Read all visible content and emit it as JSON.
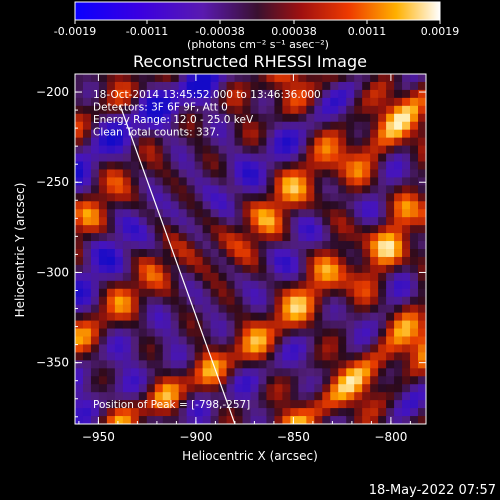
{
  "colorbar": {
    "tick_labels": [
      "-0.0019",
      "-0.0011",
      "-0.00038",
      "0.00038",
      "0.0011",
      "0.0019"
    ],
    "units_label": "(photons cm⁻² s⁻¹ asec⁻²)",
    "range": [
      -0.0019,
      0.0019
    ]
  },
  "chart_data": {
    "type": "heatmap",
    "title": "Reconstructed RHESSI Image",
    "xlabel": "Heliocentric X (arcsec)",
    "ylabel": "Heliocentric Y (arcsec)",
    "xlim": [
      -962,
      -782
    ],
    "ylim": [
      -384,
      -190
    ],
    "x_ticks": [
      -950,
      -900,
      -850,
      -800
    ],
    "y_ticks": [
      -200,
      -250,
      -300,
      -350
    ],
    "x_tick_labels": [
      "−950",
      "−900",
      "−850",
      "−800"
    ],
    "y_tick_labels": [
      "−200",
      "−250",
      "−300",
      "−350"
    ],
    "limb_line": {
      "x": [
        -939,
        -880
      ],
      "y": [
        -207,
        -384
      ]
    },
    "annotations": [
      "18-Oct-2014 13:45:52.000 to 13:46:36.000",
      "Detectors: 3F 6F 9F, Att 0",
      "Energy Range: 12.0 - 25.0 keV",
      "Clean    Total counts: 337."
    ],
    "peak_label": "Position of Peak = [-798,-257]",
    "peak": [
      -798,
      -257
    ]
  },
  "footer": {
    "timestamp": "18-May-2022 07:57"
  }
}
